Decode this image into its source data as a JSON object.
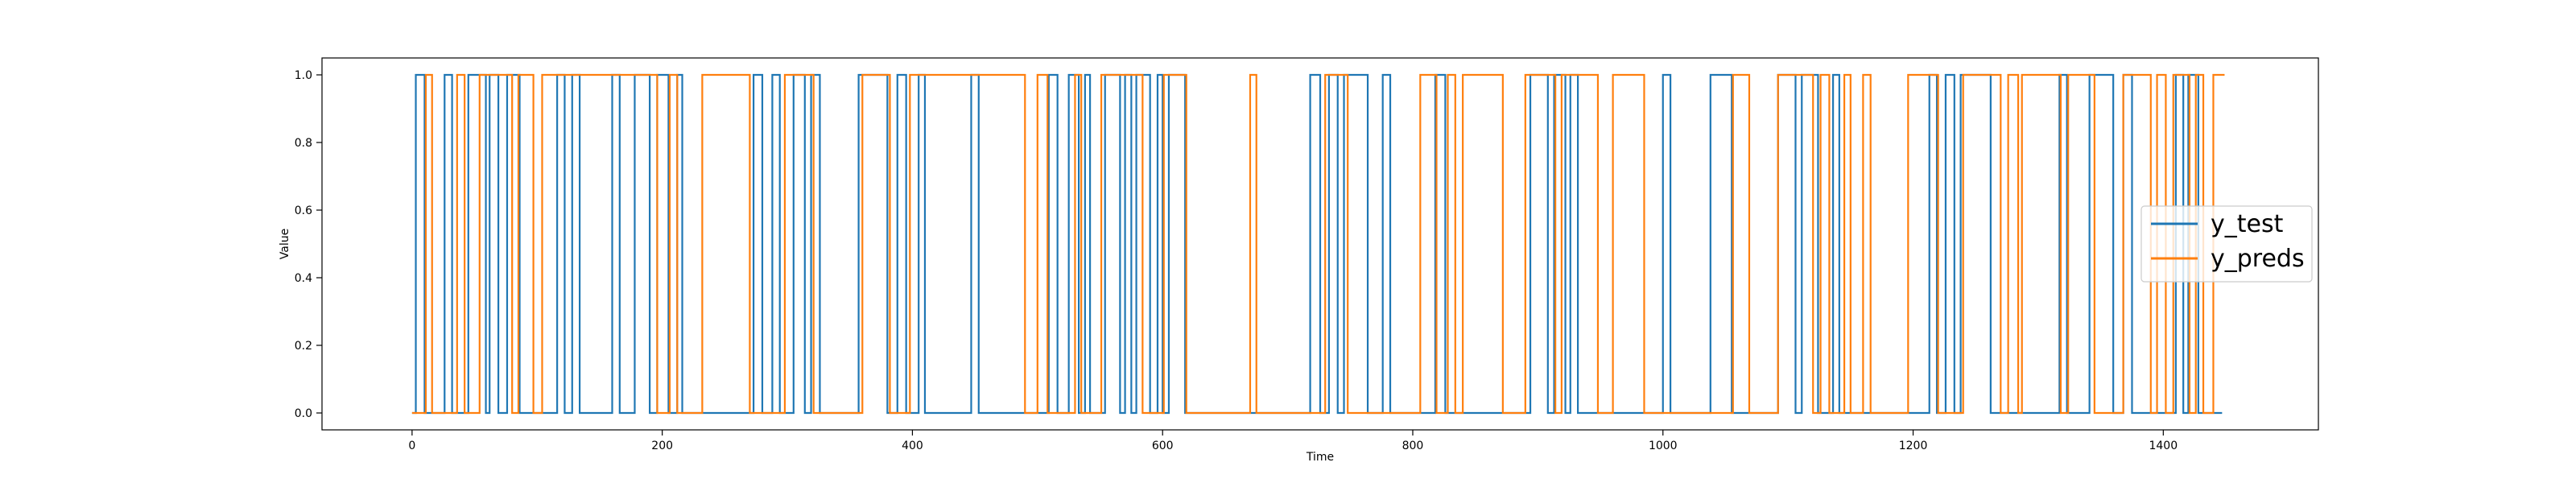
{
  "chart_data": {
    "type": "line",
    "title": "",
    "xlabel": "Time",
    "ylabel": "Value",
    "xlim": [
      -72,
      1524
    ],
    "ylim": [
      -0.05,
      1.05
    ],
    "xticks": [
      0,
      200,
      400,
      600,
      800,
      1000,
      1200,
      1400
    ],
    "yticks": [
      0.0,
      0.2,
      0.4,
      0.6,
      0.8,
      1.0
    ],
    "xtick_labels": [
      "0",
      "200",
      "400",
      "600",
      "800",
      "1000",
      "1200",
      "1400"
    ],
    "ytick_labels": [
      "0.0",
      "0.2",
      "0.4",
      "0.6",
      "0.8",
      "1.0"
    ],
    "grid": false,
    "legend_position": "center-right",
    "drawstyle": "steps",
    "series": [
      {
        "name": "y_test",
        "color": "#1f77b4",
        "x": [
          0,
          3,
          10,
          26,
          32,
          45,
          59,
          62,
          69,
          76,
          86,
          116,
          122,
          128,
          134,
          160,
          166,
          178,
          190,
          196,
          205,
          212,
          216,
          228,
          273,
          280,
          288,
          294,
          305,
          314,
          319,
          326,
          357,
          380,
          388,
          395,
          405,
          410,
          413,
          447,
          453,
          509,
          516,
          525,
          533,
          538,
          542,
          554,
          566,
          570,
          575,
          579,
          590,
          596,
          600,
          605,
          618,
          718,
          726,
          733,
          740,
          745,
          764,
          776,
          782,
          818,
          826,
          894,
          908,
          913,
          922,
          926,
          932,
          1000,
          1006,
          1038,
          1055,
          1092,
          1106,
          1111,
          1124,
          1136,
          1141,
          1147,
          1213,
          1219,
          1226,
          1233,
          1238,
          1262,
          1317,
          1323,
          1341,
          1360,
          1368,
          1375,
          1410,
          1416,
          1420,
          1428,
          1447
        ],
        "y": [
          0,
          1,
          0,
          1,
          0,
          1,
          0,
          1,
          0,
          1,
          0,
          1,
          0,
          1,
          0,
          1,
          0,
          1,
          0,
          1,
          0,
          1,
          0,
          0,
          1,
          0,
          1,
          0,
          1,
          0,
          1,
          0,
          1,
          0,
          1,
          0,
          1,
          0,
          0,
          1,
          0,
          1,
          0,
          1,
          0,
          1,
          0,
          1,
          0,
          1,
          0,
          1,
          0,
          1,
          0,
          1,
          0,
          1,
          0,
          1,
          0,
          1,
          0,
          1,
          0,
          1,
          0,
          1,
          0,
          1,
          0,
          1,
          0,
          1,
          0,
          1,
          0,
          1,
          0,
          1,
          0,
          1,
          0,
          0,
          1,
          0,
          1,
          0,
          1,
          0,
          1,
          0,
          1,
          0,
          1,
          0,
          1,
          0,
          1,
          0,
          0
        ]
      },
      {
        "name": "y_preds",
        "color": "#ff7f0e",
        "x": [
          0,
          11,
          16,
          36,
          42,
          54,
          80,
          85,
          97,
          104,
          131,
          196,
          206,
          212,
          232,
          270,
          298,
          321,
          360,
          382,
          398,
          490,
          500,
          508,
          530,
          535,
          551,
          584,
          601,
          619,
          670,
          675,
          706,
          730,
          748,
          806,
          819,
          828,
          834,
          840,
          872,
          876,
          890,
          914,
          919,
          948,
          960,
          985,
          1042,
          1056,
          1069,
          1092,
          1120,
          1126,
          1133,
          1145,
          1150,
          1160,
          1166,
          1196,
          1220,
          1240,
          1270,
          1276,
          1284,
          1287,
          1318,
          1324,
          1345,
          1368,
          1390,
          1395,
          1402,
          1408,
          1421,
          1426,
          1432,
          1440,
          1449
        ],
        "y": [
          0,
          1,
          0,
          1,
          0,
          1,
          0,
          1,
          0,
          1,
          1,
          0,
          1,
          0,
          1,
          0,
          1,
          0,
          1,
          0,
          1,
          0,
          1,
          0,
          1,
          0,
          1,
          0,
          1,
          0,
          1,
          0,
          0,
          1,
          0,
          1,
          0,
          1,
          0,
          1,
          0,
          0,
          1,
          0,
          1,
          0,
          1,
          0,
          0,
          1,
          0,
          1,
          0,
          1,
          0,
          1,
          0,
          1,
          0,
          1,
          0,
          1,
          0,
          1,
          0,
          1,
          0,
          1,
          0,
          1,
          0,
          1,
          0,
          1,
          0,
          1,
          0,
          1,
          1
        ]
      }
    ]
  }
}
